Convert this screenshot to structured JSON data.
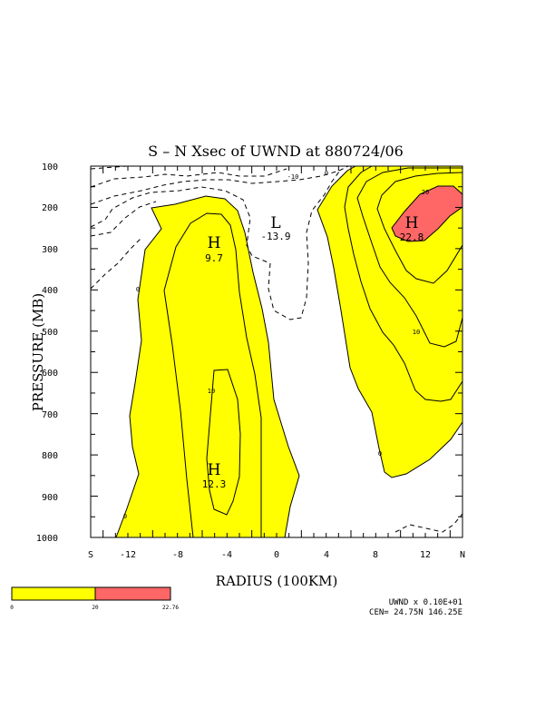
{
  "chart_data": {
    "type": "contour",
    "title": "S – N Xsec of UWND at 880724/06",
    "xlabel": "RADIUS (100KM)",
    "ylabel": "PRESSURE (MB)",
    "x_ticks": [
      "S",
      "-12",
      "-8",
      "-4",
      "0",
      "4",
      "8",
      "12",
      "N"
    ],
    "y_ticks": [
      "100",
      "200",
      "300",
      "400",
      "500",
      "600",
      "700",
      "800",
      "900",
      "1000"
    ],
    "xlim": [
      -15,
      15
    ],
    "ylim": [
      1000,
      100
    ],
    "contour_interval": 10,
    "contour_labels": [
      "0",
      "-10",
      "10",
      "20"
    ],
    "shading": {
      "levels": [
        "0",
        "20",
        "22.76"
      ],
      "colors": [
        "#ffff00",
        "#ff6666"
      ]
    },
    "extrema": [
      {
        "kind": "H",
        "value": "9.7",
        "x": -5.8,
        "p": 280
      },
      {
        "kind": "H",
        "value": "12.3",
        "x": -5.8,
        "p": 840
      },
      {
        "kind": "L",
        "value": "-13.9",
        "x": 0,
        "p": 255
      },
      {
        "kind": "H",
        "value": "22.8",
        "x": 11,
        "p": 250
      }
    ],
    "footnote": {
      "field": "UWND x  0.10E+01",
      "center": "CEN= 24.75N  146.25E"
    }
  }
}
